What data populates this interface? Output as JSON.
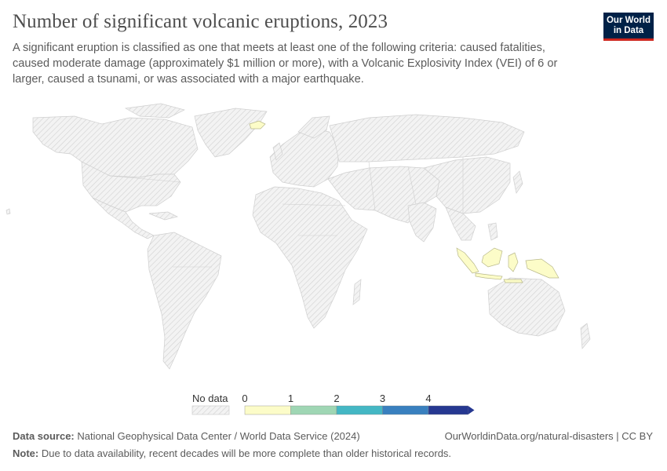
{
  "title": "Number of significant volcanic eruptions, 2023",
  "subtitle": "A significant eruption is classified as one that meets at least one of the following criteria: caused fatalities, caused moderate damage (approximately $1 million or more), with a Volcanic Explosivity Index (VEI) of 6 or larger, caused a tsunami, or was associated with a major earthquake.",
  "logo": {
    "line1": "Our World",
    "line2": "in Data"
  },
  "legend": {
    "no_data_label": "No data",
    "ticks": [
      "0",
      "1",
      "2",
      "3",
      "4"
    ],
    "colors": [
      "#fcfcc8",
      "#9fd6b4",
      "#44b7c4",
      "#3980bf",
      "#263891"
    ]
  },
  "colors": {
    "no_data_fill": "#efefef",
    "no_data_hatch": "#d2d2d2",
    "low_value": "#fcfcc8"
  },
  "map_data": {
    "highlighted_regions": [
      {
        "region": "Iceland",
        "value_bin": "0-1"
      },
      {
        "region": "Indonesia",
        "value_bin": "0-1"
      },
      {
        "region": "Papua New Guinea",
        "value_bin": "0-1"
      }
    ]
  },
  "footer": {
    "source_label": "Data source:",
    "source_text": "National Geophysical Data Center / World Data Service (2024)",
    "url_text": "OurWorldinData.org/natural-disasters | CC BY",
    "note_label": "Note:",
    "note_text": "Due to data availability, recent decades will be more complete than older historical records."
  }
}
